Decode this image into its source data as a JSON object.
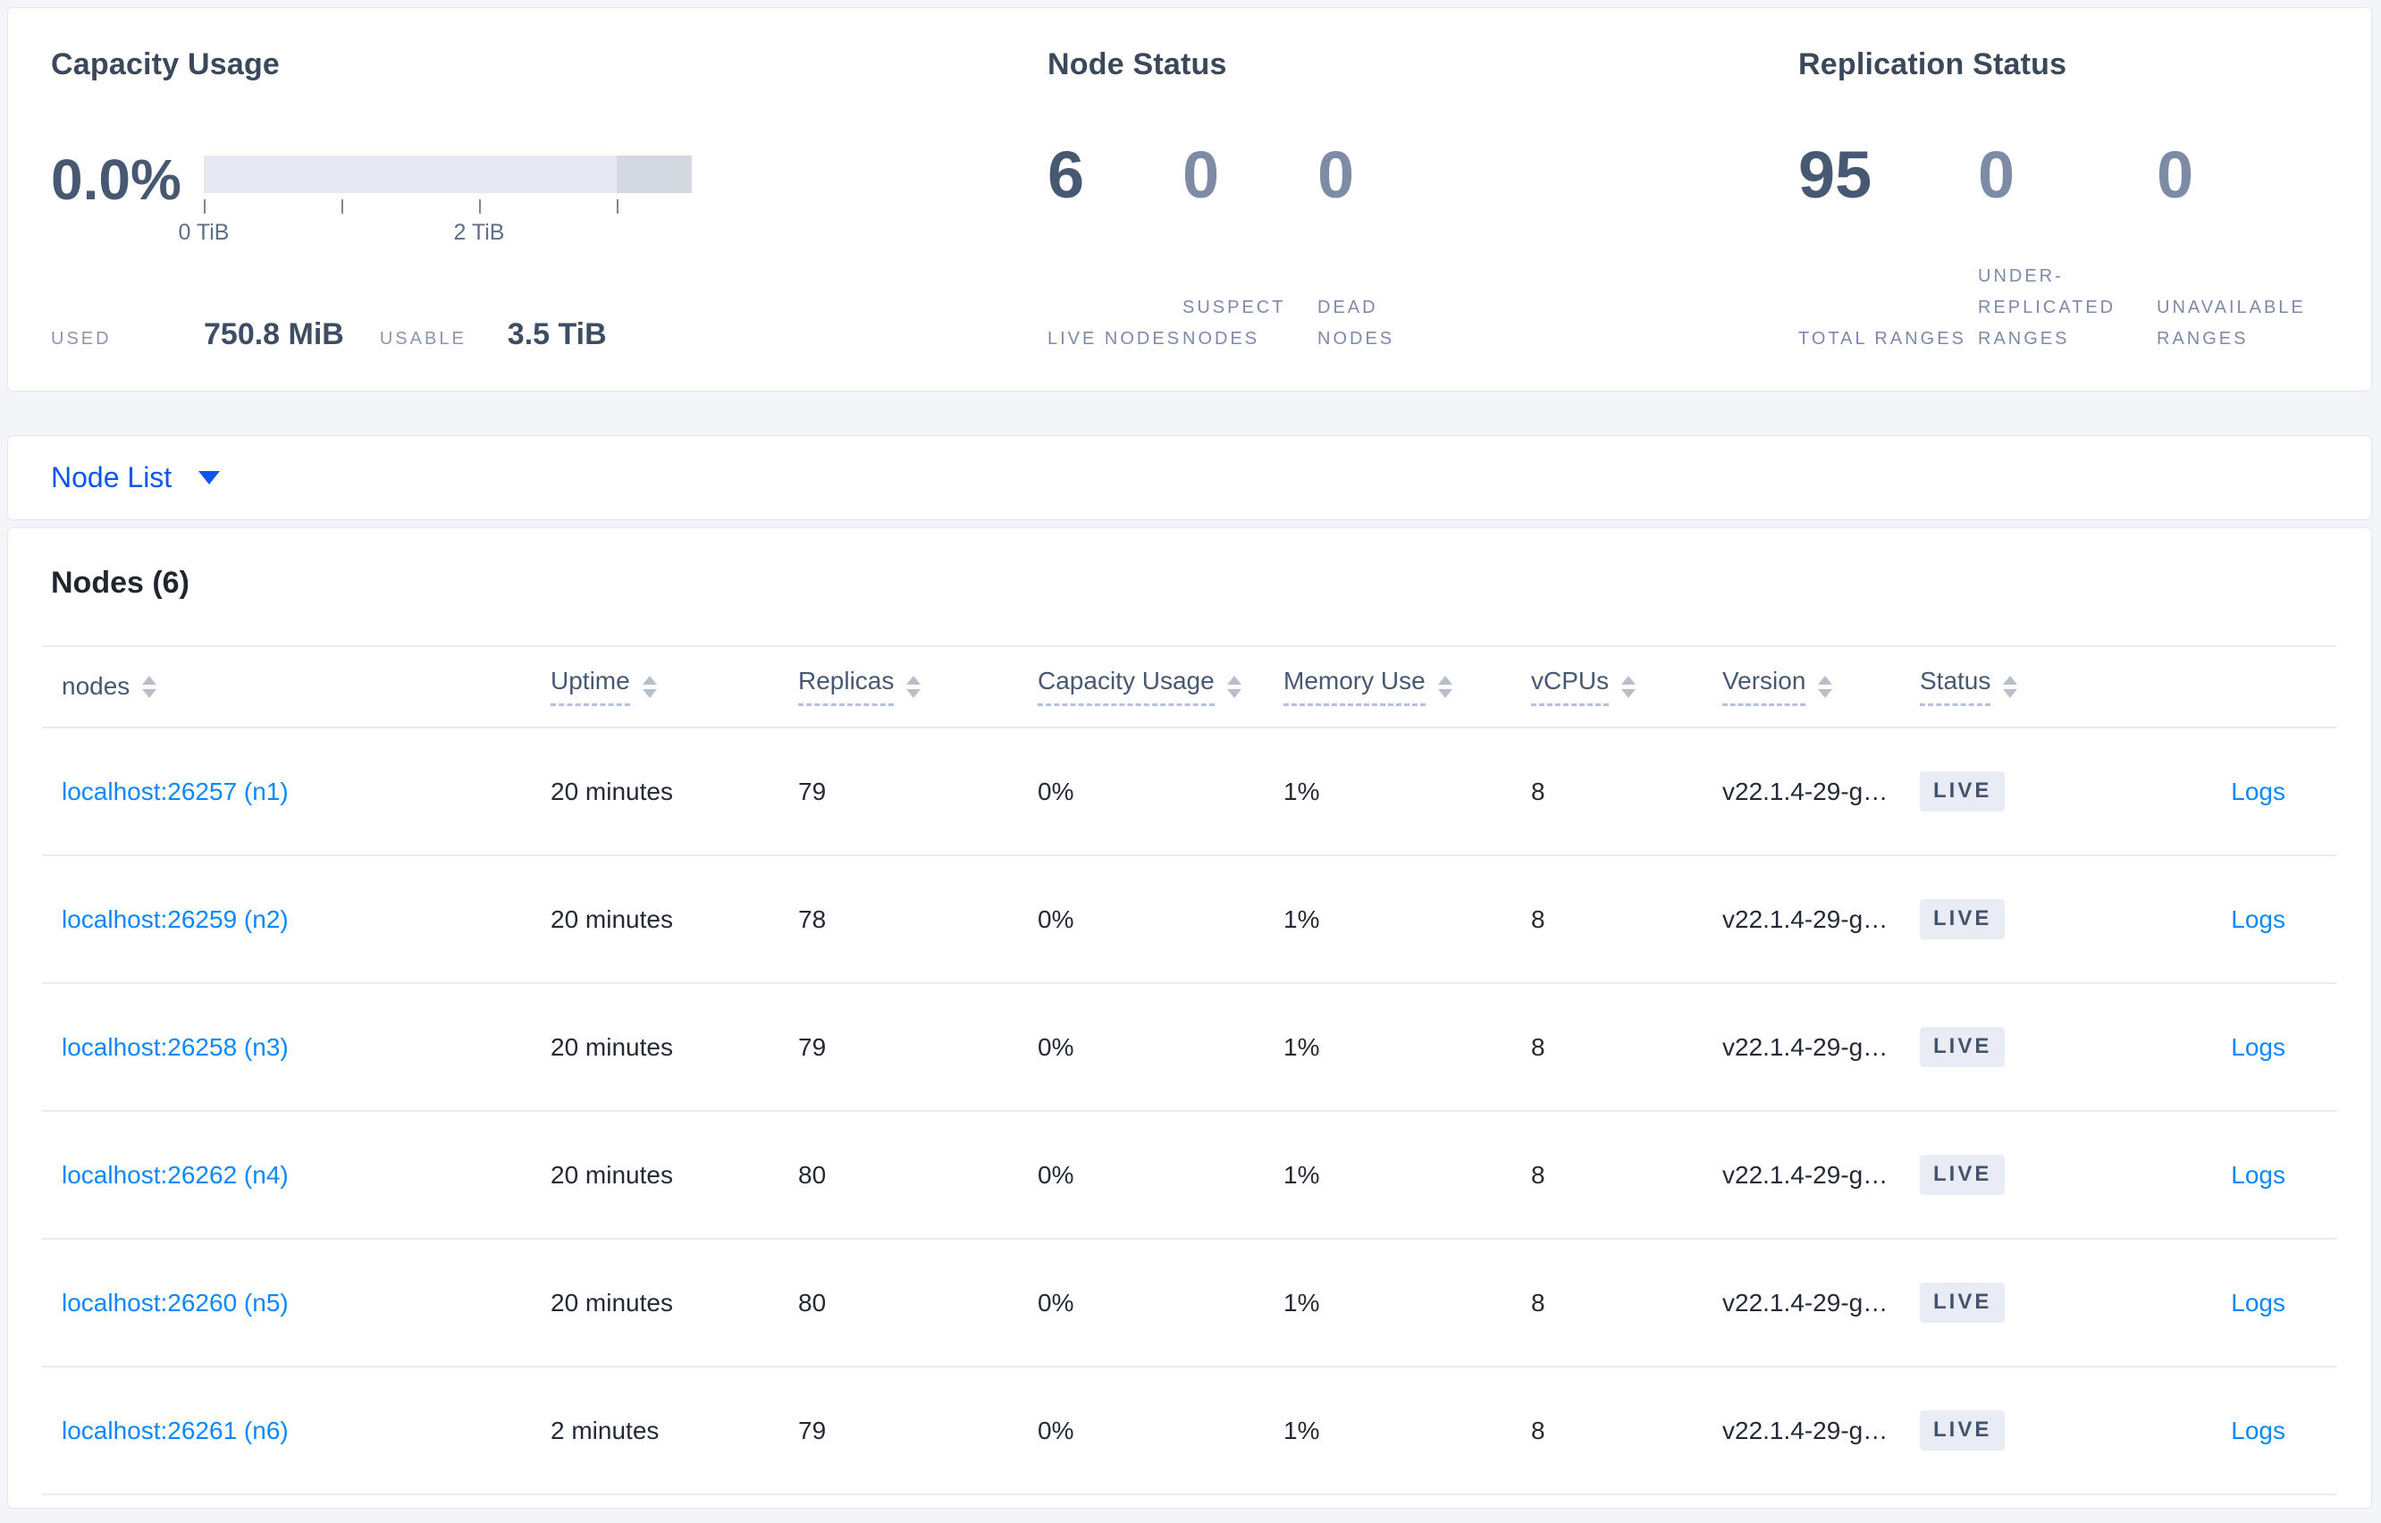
{
  "capacity_panel": {
    "title": "Capacity Usage",
    "percent": "0.0%",
    "used_label": "USED",
    "used_value": "750.8 MiB",
    "usable_label": "USABLE",
    "usable_value": "3.5 TiB",
    "chart_data": {
      "type": "bar",
      "title": "Capacity Usage gauge",
      "percent_used": 0.0,
      "used": "750.8 MiB",
      "usable": "3.5 TiB",
      "axis_unit": "TiB",
      "xlim": [
        0,
        3.54
      ],
      "dark_segment_from_fraction": 0.847,
      "ticks": [
        {
          "pos": 0.0,
          "label": "0 TiB"
        },
        {
          "pos": 0.282,
          "label": ""
        },
        {
          "pos": 0.565,
          "label": "2 TiB"
        },
        {
          "pos": 0.847,
          "label": ""
        }
      ]
    }
  },
  "node_status_panel": {
    "title": "Node Status",
    "stats": [
      {
        "value": "6",
        "label": "LIVE NODES",
        "emphasis": true
      },
      {
        "value": "0",
        "label": "SUSPECT NODES",
        "emphasis": false
      },
      {
        "value": "0",
        "label": "DEAD NODES",
        "emphasis": false
      }
    ]
  },
  "replication_panel": {
    "title": "Replication Status",
    "stats": [
      {
        "value": "95",
        "label": "TOTAL RANGES",
        "emphasis": true
      },
      {
        "value": "0",
        "label": "UNDER-REPLICATED RANGES",
        "emphasis": false
      },
      {
        "value": "0",
        "label": "UNAVAILABLE RANGES",
        "emphasis": false
      }
    ]
  },
  "node_list_bar": {
    "label": "Node List"
  },
  "nodes_section": {
    "title": "Nodes (6)",
    "columns": [
      {
        "key": "node",
        "label": "nodes",
        "underline": false,
        "sortable": true
      },
      {
        "key": "uptime",
        "label": "Uptime",
        "underline": true,
        "sortable": true
      },
      {
        "key": "replicas",
        "label": "Replicas",
        "underline": true,
        "sortable": true
      },
      {
        "key": "capacity",
        "label": "Capacity Usage",
        "underline": true,
        "sortable": true
      },
      {
        "key": "memory",
        "label": "Memory Use",
        "underline": true,
        "sortable": true
      },
      {
        "key": "vcpus",
        "label": "vCPUs",
        "underline": true,
        "sortable": true
      },
      {
        "key": "version",
        "label": "Version",
        "underline": true,
        "sortable": true
      },
      {
        "key": "status",
        "label": "Status",
        "underline": true,
        "sortable": true
      },
      {
        "key": "logs",
        "label": "",
        "underline": false,
        "sortable": false
      }
    ],
    "rows": [
      {
        "node": "localhost:26257 (n1)",
        "uptime": "20 minutes",
        "replicas": "79",
        "capacity": "0%",
        "memory": "1%",
        "vcpus": "8",
        "version": "v22.1.4-29-g…",
        "status": "LIVE",
        "logs": "Logs"
      },
      {
        "node": "localhost:26259 (n2)",
        "uptime": "20 minutes",
        "replicas": "78",
        "capacity": "0%",
        "memory": "1%",
        "vcpus": "8",
        "version": "v22.1.4-29-g…",
        "status": "LIVE",
        "logs": "Logs"
      },
      {
        "node": "localhost:26258 (n3)",
        "uptime": "20 minutes",
        "replicas": "79",
        "capacity": "0%",
        "memory": "1%",
        "vcpus": "8",
        "version": "v22.1.4-29-g…",
        "status": "LIVE",
        "logs": "Logs"
      },
      {
        "node": "localhost:26262 (n4)",
        "uptime": "20 minutes",
        "replicas": "80",
        "capacity": "0%",
        "memory": "1%",
        "vcpus": "8",
        "version": "v22.1.4-29-g…",
        "status": "LIVE",
        "logs": "Logs"
      },
      {
        "node": "localhost:26260 (n5)",
        "uptime": "20 minutes",
        "replicas": "80",
        "capacity": "0%",
        "memory": "1%",
        "vcpus": "8",
        "version": "v22.1.4-29-g…",
        "status": "LIVE",
        "logs": "Logs"
      },
      {
        "node": "localhost:26261 (n6)",
        "uptime": "2 minutes",
        "replicas": "79",
        "capacity": "0%",
        "memory": "1%",
        "vcpus": "8",
        "version": "v22.1.4-29-g…",
        "status": "LIVE",
        "logs": "Logs"
      }
    ]
  },
  "colors": {
    "page_bg": "#f3f5f9",
    "card_bg": "#ffffff",
    "title": "#3b4859",
    "stat_dark": "#475872",
    "stat_light": "#7e8ba6",
    "muted_label": "#7e89a9",
    "link_blue": "#0788ff",
    "dropdown_blue": "#0b55f0",
    "bar_light": "#e7e9f0",
    "bar_dark": "#d4d8e1",
    "badge_bg": "#e9edf3",
    "badge_text": "#44546e",
    "divider": "#e9ecf1"
  }
}
